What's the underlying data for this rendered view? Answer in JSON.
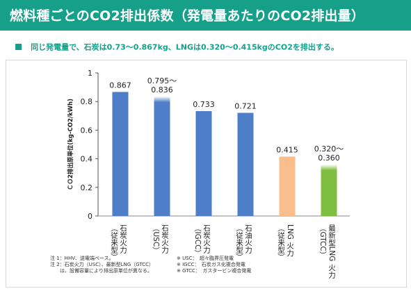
{
  "header": {
    "title": "燃料種ごとのCO2排出係数（発電量あたりのCO2排出量）"
  },
  "subtitle": "同じ発電量で、石炭は0.73〜0.867kg、LNGは0.320〜0.415kgのCO2を排出する。",
  "colors": {
    "header_bg": "#16a089",
    "coal_oil": "#4f7ec9",
    "lng": "#f9be8c",
    "lng_new": "#7fbf3f"
  },
  "chart_data": {
    "type": "bar",
    "ylabel": "ＣＯ2排出原単位(kg-CO2/kWh)",
    "ylim": [
      0,
      1
    ],
    "yticks": [
      "0",
      "0.2",
      "0.4",
      "0.6",
      "0.8",
      "1"
    ],
    "categories": [
      [
        "石炭火力",
        "（従来型）"
      ],
      [
        "石炭火力",
        "（USC）"
      ],
      [
        "石炭火力",
        "（IGCC）"
      ],
      [
        "石油火力",
        "（従来型）"
      ],
      [
        "LNG 火力",
        "（従来型）"
      ],
      [
        "最新型LNG 火力",
        "（GTCC）"
      ]
    ],
    "bars": [
      {
        "value": 0.867,
        "color": "coal_oil",
        "fade_from": null,
        "label": [
          "0.867"
        ]
      },
      {
        "value": 0.836,
        "color": "coal_oil",
        "fade_from": 0.795,
        "label": [
          "0.795〜",
          "0.836"
        ]
      },
      {
        "value": 0.733,
        "color": "coal_oil",
        "fade_from": null,
        "label": [
          "0.733"
        ]
      },
      {
        "value": 0.721,
        "color": "coal_oil",
        "fade_from": null,
        "label": [
          "0.721"
        ]
      },
      {
        "value": 0.415,
        "color": "lng",
        "fade_from": null,
        "label": [
          "0.415"
        ]
      },
      {
        "value": 0.36,
        "color": "lng_new",
        "fade_from": 0.32,
        "label": [
          "0.320〜",
          "0.360"
        ]
      }
    ],
    "notes_left": [
      "注 1：HHV、送電端ベース。",
      "注 2：石炭火力（USC）、最新型LNG（GTCC）",
      "　　は、設備容量により排出原単位が異なる。"
    ],
    "notes_right": [
      "※ USC：　超々臨界圧発電",
      "※ IGCC：　石炭ガス化複合発電",
      "※ GTCC：　ガスタービン複合発電"
    ]
  }
}
